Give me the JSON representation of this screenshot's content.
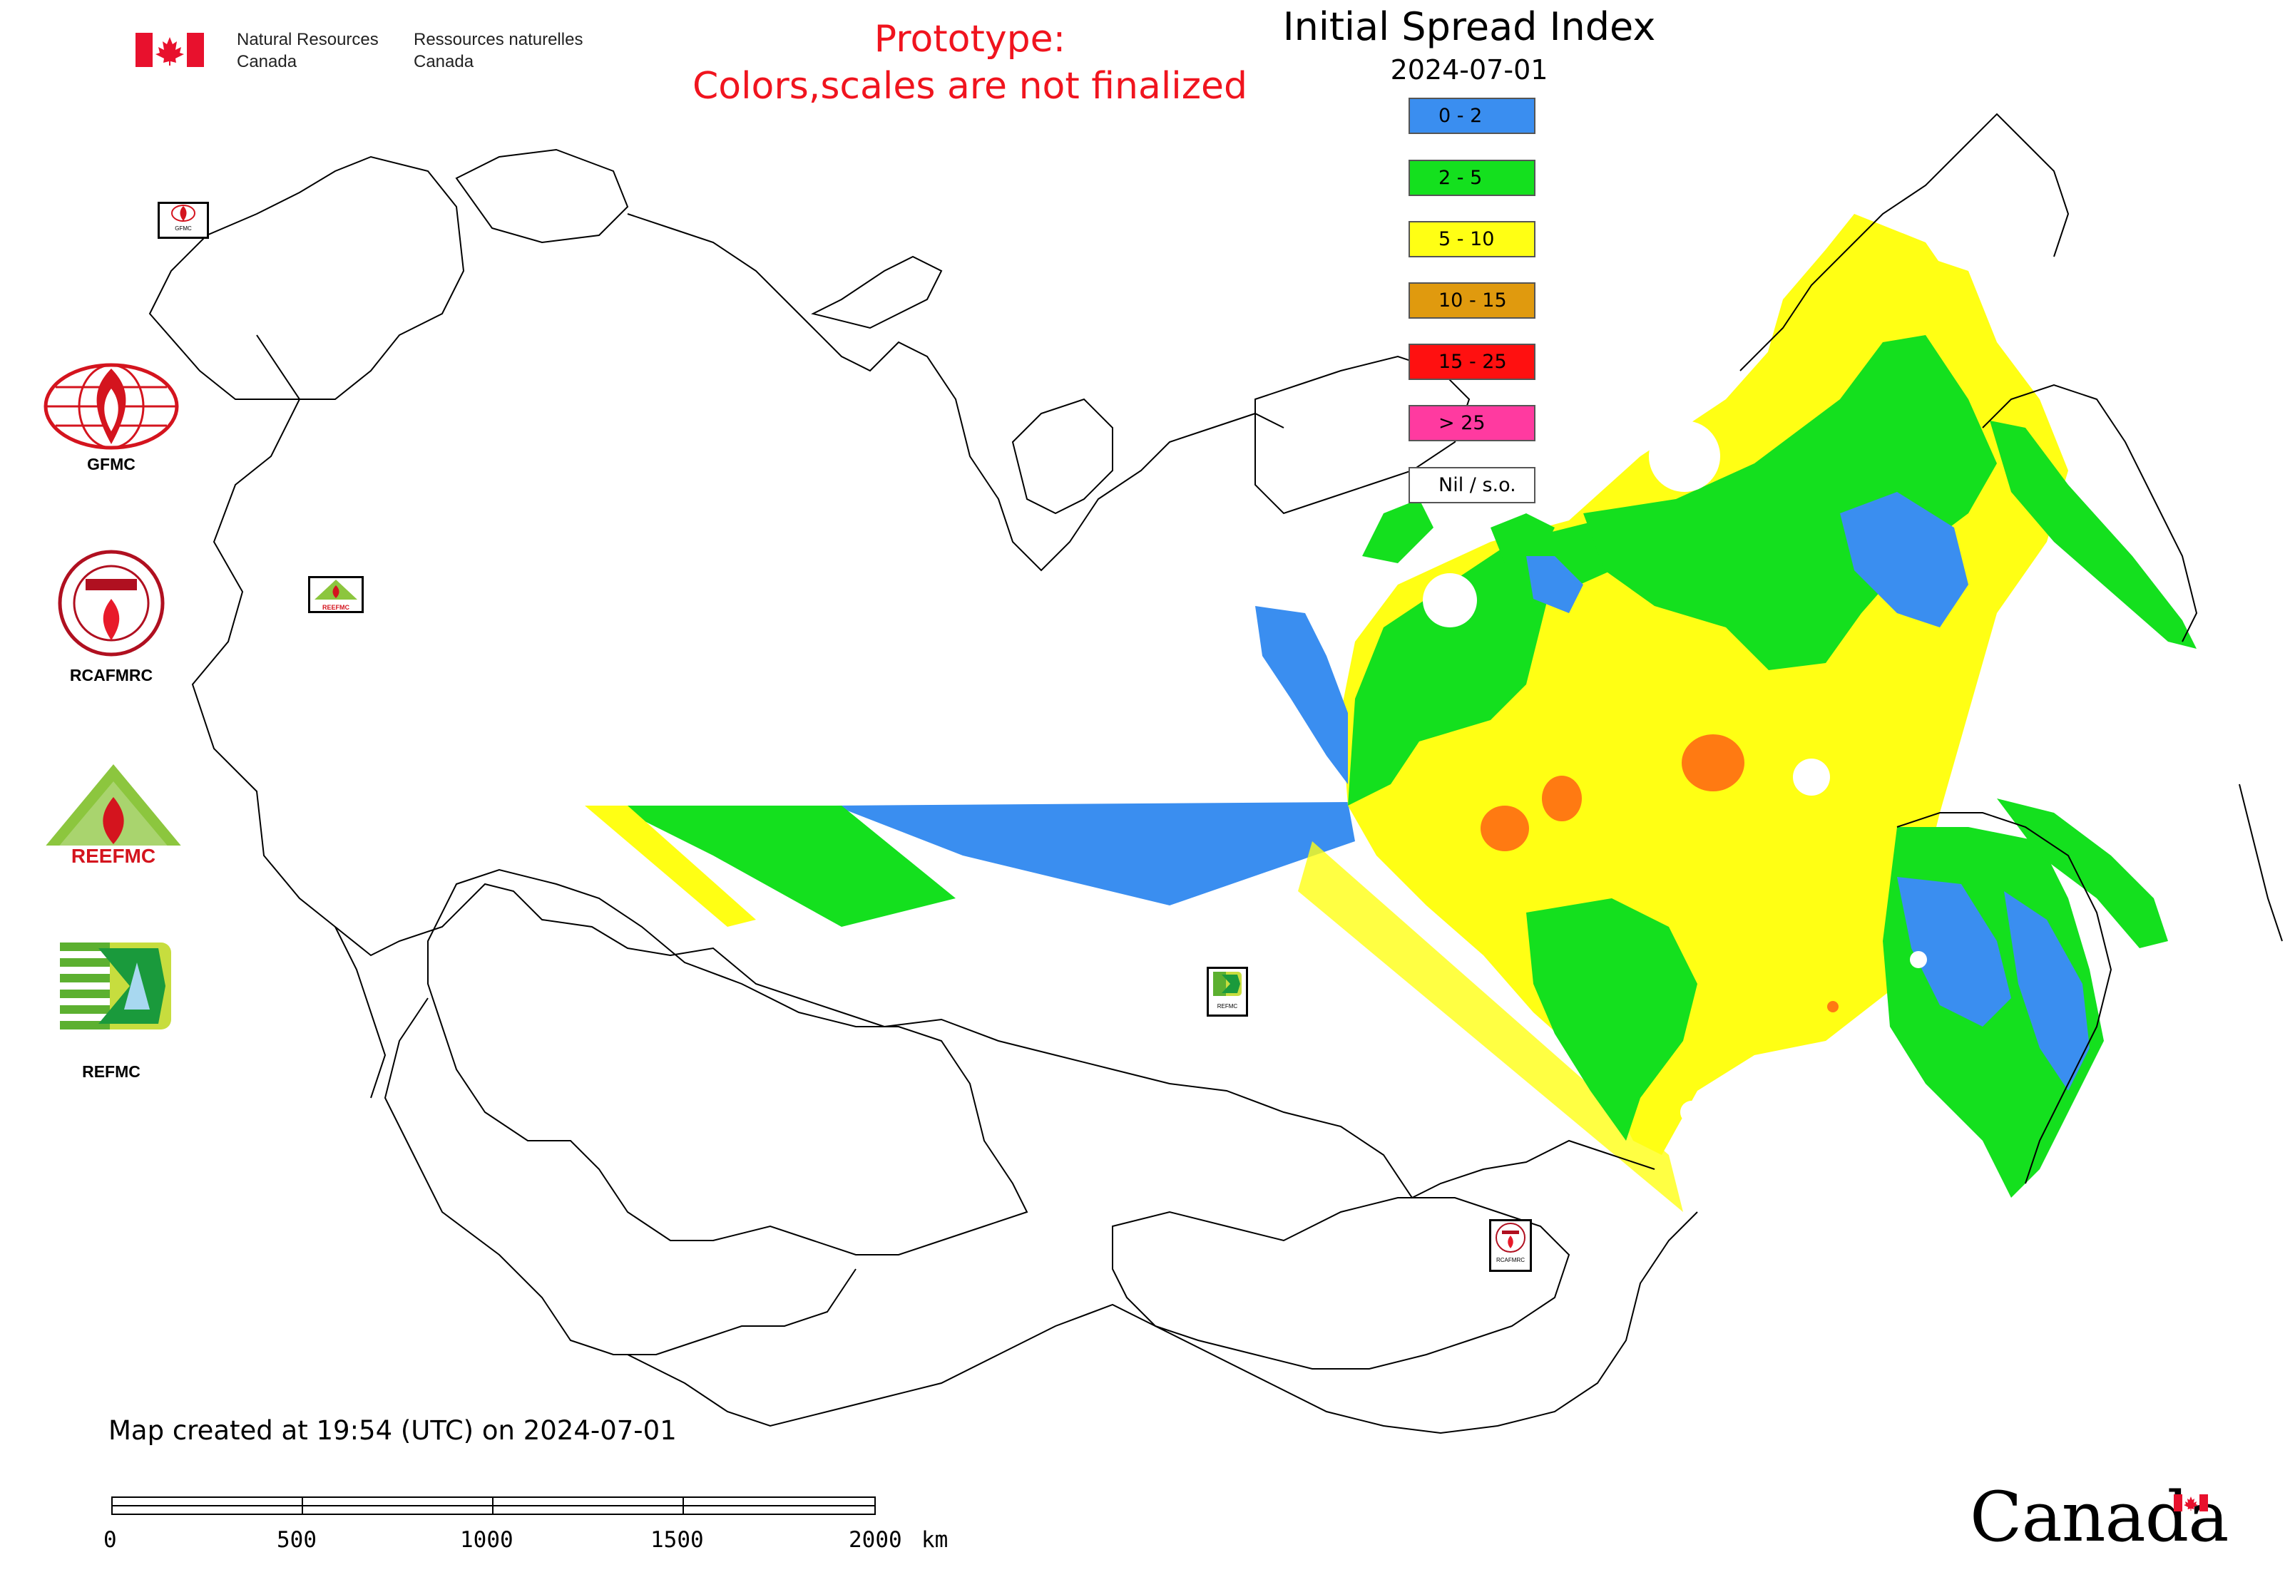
{
  "header": {
    "agency_en_line1": "Natural Resources",
    "agency_en_line2": "Canada",
    "agency_fr_line1": "Ressources naturelles",
    "agency_fr_line2": "Canada",
    "prototype_line1": "Prototype:",
    "prototype_line2": "Colors,scales are not finalized"
  },
  "legend": {
    "title": "Initial Spread Index",
    "date": "2024-07-01",
    "classes": [
      {
        "label": "0 - 2",
        "color": "#3a8ef0"
      },
      {
        "label": "2 - 5",
        "color": "#14e01e"
      },
      {
        "label": "5 - 10",
        "color": "#ffff14"
      },
      {
        "label": "10 - 15",
        "color": "#e09a0e"
      },
      {
        "label": "15 - 25",
        "color": "#ff1010"
      },
      {
        "label": "> 25",
        "color": "#ff3aa0"
      },
      {
        "label": "Nil / s.o.",
        "color": "#ffffff"
      }
    ]
  },
  "logos": [
    {
      "label": "GFMC",
      "icon": "gfmc-globe-flame-logo"
    },
    {
      "label": "RCAFMRC",
      "icon": "rcafmrc-seal-logo"
    },
    {
      "label": "",
      "icon": "reefmc-triangle-logo",
      "wordmark": "REEFMC"
    },
    {
      "label": "REFMC",
      "icon": "refmc-square-logo"
    }
  ],
  "map_markers": [
    {
      "label": "GFMC",
      "icon": "gfmc-marker"
    },
    {
      "label": "REEFMC",
      "icon": "reefmc-marker"
    },
    {
      "label": "REFMC",
      "icon": "refmc-marker"
    },
    {
      "label": "RCAFMRC",
      "icon": "rcafmrc-marker"
    }
  ],
  "footer": {
    "created_text": "Map created at 19:54 (UTC) on 2024-07-01",
    "scale_ticks": [
      "0",
      "500",
      "1000",
      "1500",
      "2000"
    ],
    "scale_unit": "km",
    "wordmark": "Canada"
  },
  "colors": {
    "prototype_text": "#f0141e",
    "flag_red": "#e8112d",
    "boundary": "#000000"
  }
}
